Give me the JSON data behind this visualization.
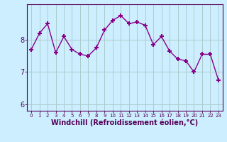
{
  "x": [
    0,
    1,
    2,
    3,
    4,
    5,
    6,
    7,
    8,
    9,
    10,
    11,
    12,
    13,
    14,
    15,
    16,
    17,
    18,
    19,
    20,
    21,
    22,
    23
  ],
  "y": [
    7.7,
    8.2,
    8.5,
    7.6,
    8.1,
    7.7,
    7.55,
    7.5,
    7.75,
    8.3,
    8.6,
    8.75,
    8.5,
    8.55,
    8.45,
    7.85,
    8.1,
    7.65,
    7.4,
    7.35,
    7.0,
    7.55,
    7.55,
    6.75
  ],
  "line_color": "#880088",
  "marker": "+",
  "xlabel": "Windchill (Refroidissement éolien,°C)",
  "ylim": [
    5.8,
    9.1
  ],
  "xlim": [
    -0.5,
    23.5
  ],
  "bg_color": "#cceeff",
  "grid_color": "#aacccc",
  "xlabel_color": "#550055",
  "tick_color": "#550055",
  "axis_color": "#550055",
  "xlabel_fontsize": 7,
  "ytick_fontsize": 7,
  "xtick_fontsize": 5,
  "yticks": [
    6,
    7,
    8
  ],
  "xticks": [
    0,
    1,
    2,
    3,
    4,
    5,
    6,
    7,
    8,
    9,
    10,
    11,
    12,
    13,
    14,
    15,
    16,
    17,
    18,
    19,
    20,
    21,
    22,
    23
  ]
}
